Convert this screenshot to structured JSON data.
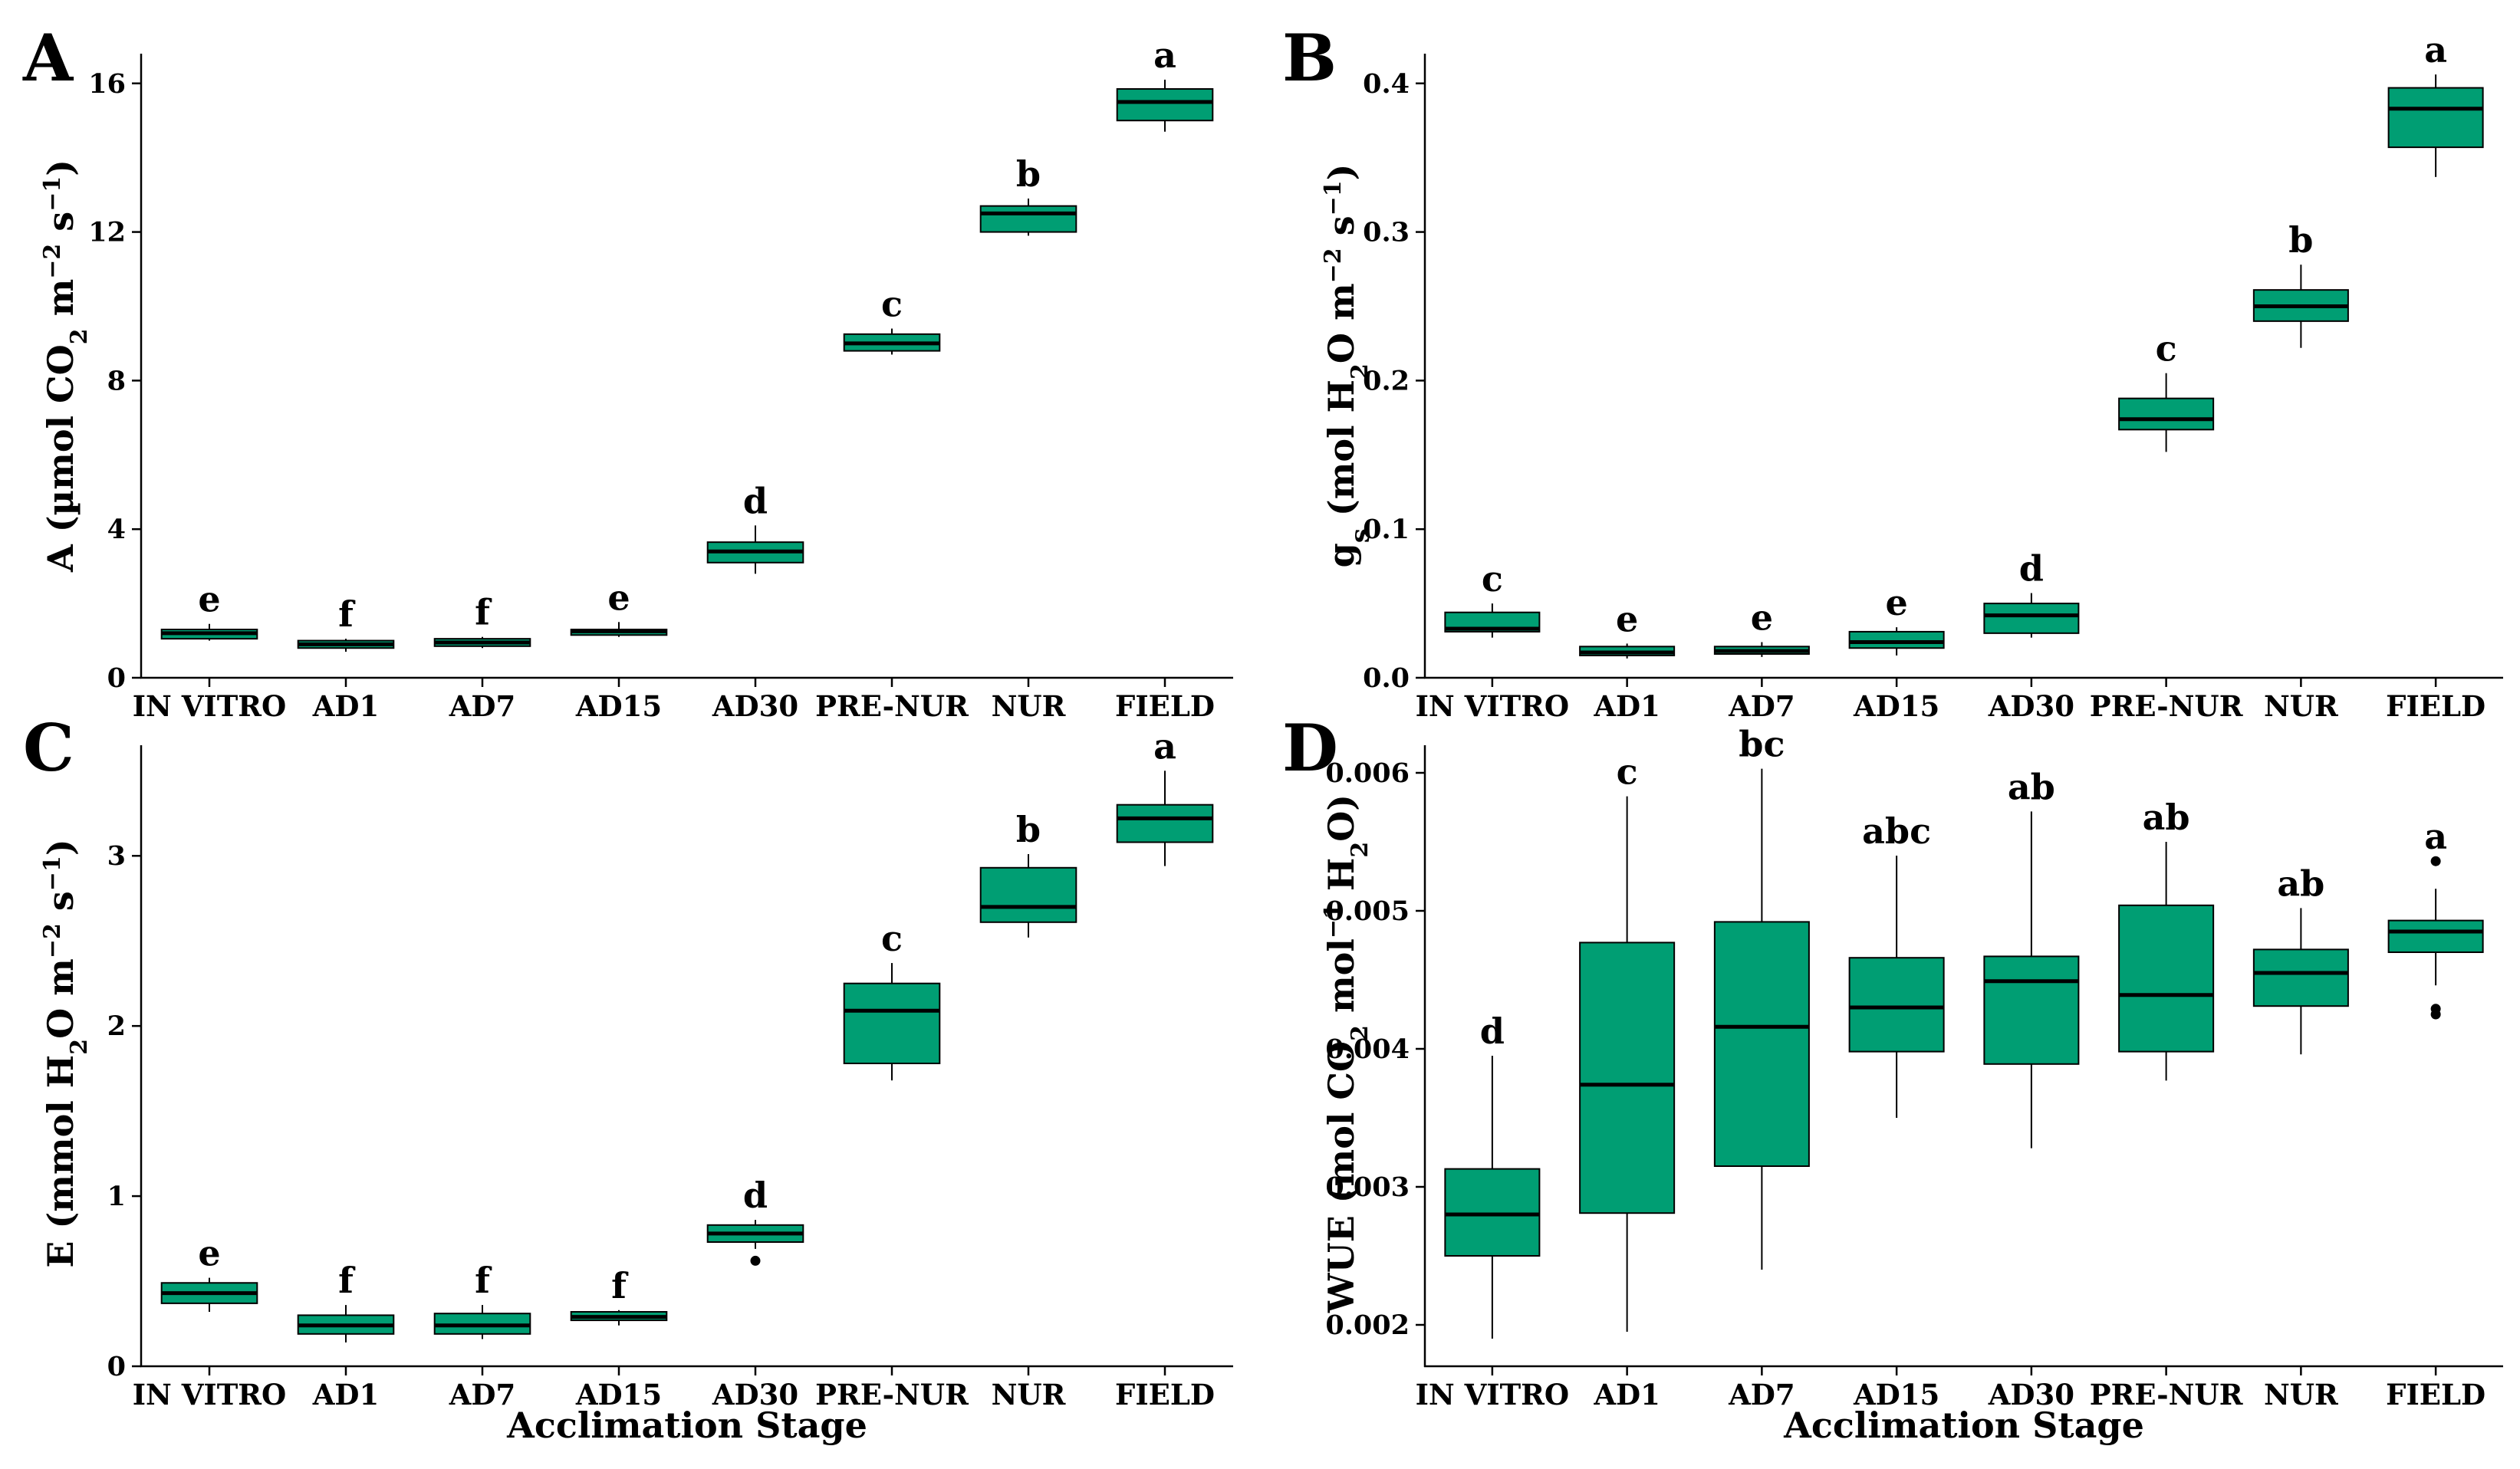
{
  "figure": {
    "box_color": "#009e73",
    "x_axis_title": "Acclimation Stage",
    "categories": [
      "IN VITRO",
      "AD1",
      "AD7",
      "AD15",
      "AD30",
      "PRE-NUR",
      "NUR",
      "FIELD"
    ]
  },
  "chart_data": [
    {
      "type": "box",
      "panel": "A",
      "ylabel_main": "A",
      "ylabel_unit": "(µmol CO2 m−2 s−1)",
      "xlabel": "",
      "ylim": [
        0,
        16.8
      ],
      "yticks": [
        0,
        4,
        8,
        12,
        16
      ],
      "categories": [
        "IN VITRO",
        "AD1",
        "AD7",
        "AD15",
        "AD30",
        "PRE-NUR",
        "NUR",
        "FIELD"
      ],
      "boxes": [
        {
          "min": 1.0,
          "q1": 1.05,
          "median": 1.2,
          "q3": 1.3,
          "max": 1.45,
          "outliers": []
        },
        {
          "min": 0.7,
          "q1": 0.8,
          "median": 0.9,
          "q3": 1.0,
          "max": 1.05,
          "outliers": []
        },
        {
          "min": 0.8,
          "q1": 0.85,
          "median": 0.95,
          "q3": 1.05,
          "max": 1.1,
          "outliers": []
        },
        {
          "min": 1.1,
          "q1": 1.15,
          "median": 1.25,
          "q3": 1.3,
          "max": 1.5,
          "outliers": []
        },
        {
          "min": 2.8,
          "q1": 3.1,
          "median": 3.4,
          "q3": 3.65,
          "max": 4.1,
          "outliers": []
        },
        {
          "min": 8.7,
          "q1": 8.8,
          "median": 9.0,
          "q3": 9.25,
          "max": 9.4,
          "outliers": []
        },
        {
          "min": 11.9,
          "q1": 12.0,
          "median": 12.5,
          "q3": 12.7,
          "max": 12.9,
          "outliers": []
        },
        {
          "min": 14.7,
          "q1": 15.0,
          "median": 15.5,
          "q3": 15.85,
          "max": 16.1,
          "outliers": []
        }
      ],
      "letters": [
        "e",
        "f",
        "f",
        "e",
        "d",
        "c",
        "b",
        "a"
      ]
    },
    {
      "type": "box",
      "panel": "B",
      "ylabel_main": "g",
      "ylabel_sub": "s",
      "ylabel_unit": "(mol H2O m−2 s−1)",
      "xlabel": "",
      "ylim": [
        0,
        0.42
      ],
      "yticks": [
        0.0,
        0.1,
        0.2,
        0.3,
        0.4
      ],
      "ytick_labels": [
        "0.0",
        "0.1",
        "0.2",
        "0.3",
        "0.4"
      ],
      "categories": [
        "IN VITRO",
        "AD1",
        "AD7",
        "AD15",
        "AD30",
        "PRE-NUR",
        "NUR",
        "FIELD"
      ],
      "boxes": [
        {
          "min": 0.027,
          "q1": 0.031,
          "median": 0.033,
          "q3": 0.044,
          "max": 0.05,
          "outliers": []
        },
        {
          "min": 0.013,
          "q1": 0.015,
          "median": 0.017,
          "q3": 0.021,
          "max": 0.023,
          "outliers": []
        },
        {
          "min": 0.014,
          "q1": 0.016,
          "median": 0.018,
          "q3": 0.021,
          "max": 0.024,
          "outliers": []
        },
        {
          "min": 0.015,
          "q1": 0.02,
          "median": 0.024,
          "q3": 0.031,
          "max": 0.034,
          "outliers": []
        },
        {
          "min": 0.027,
          "q1": 0.03,
          "median": 0.042,
          "q3": 0.05,
          "max": 0.057,
          "outliers": []
        },
        {
          "min": 0.152,
          "q1": 0.167,
          "median": 0.174,
          "q3": 0.188,
          "max": 0.205,
          "outliers": []
        },
        {
          "min": 0.222,
          "q1": 0.24,
          "median": 0.25,
          "q3": 0.261,
          "max": 0.278,
          "outliers": []
        },
        {
          "min": 0.337,
          "q1": 0.357,
          "median": 0.383,
          "q3": 0.397,
          "max": 0.406,
          "outliers": []
        }
      ],
      "letters": [
        "c",
        "e",
        "e",
        "e",
        "d",
        "c",
        "b",
        "a"
      ]
    },
    {
      "type": "box",
      "panel": "C",
      "ylabel_main": "E",
      "ylabel_unit": "(mmol H2O m−2 s−1)",
      "xlabel": "Acclimation Stage",
      "ylim": [
        0,
        3.65
      ],
      "yticks": [
        0,
        1,
        2,
        3
      ],
      "categories": [
        "IN VITRO",
        "AD1",
        "AD7",
        "AD15",
        "AD30",
        "PRE-NUR",
        "NUR",
        "FIELD"
      ],
      "boxes": [
        {
          "min": 0.32,
          "q1": 0.37,
          "median": 0.43,
          "q3": 0.49,
          "max": 0.52,
          "outliers": []
        },
        {
          "min": 0.14,
          "q1": 0.19,
          "median": 0.24,
          "q3": 0.3,
          "max": 0.36,
          "outliers": []
        },
        {
          "min": 0.16,
          "q1": 0.19,
          "median": 0.24,
          "q3": 0.31,
          "max": 0.36,
          "outliers": []
        },
        {
          "min": 0.24,
          "q1": 0.27,
          "median": 0.29,
          "q3": 0.32,
          "max": 0.33,
          "outliers": []
        },
        {
          "min": 0.69,
          "q1": 0.73,
          "median": 0.78,
          "q3": 0.83,
          "max": 0.86,
          "outliers": [
            0.62
          ]
        },
        {
          "min": 1.68,
          "q1": 1.78,
          "median": 2.09,
          "q3": 2.25,
          "max": 2.37,
          "outliers": []
        },
        {
          "min": 2.52,
          "q1": 2.61,
          "median": 2.7,
          "q3": 2.93,
          "max": 3.01,
          "outliers": []
        },
        {
          "min": 2.94,
          "q1": 3.08,
          "median": 3.22,
          "q3": 3.3,
          "max": 3.5,
          "outliers": []
        }
      ],
      "letters": [
        "e",
        "f",
        "f",
        "f",
        "d",
        "c",
        "b",
        "a"
      ]
    },
    {
      "type": "box",
      "panel": "D",
      "ylabel_main": "WUE",
      "ylabel_unit": "(mol CO2 mol−1 H2O)",
      "xlabel": "Acclimation Stage",
      "ylim": [
        0.0017,
        0.0062
      ],
      "yticks": [
        0.002,
        0.003,
        0.004,
        0.005,
        0.006
      ],
      "ytick_labels": [
        "0.002",
        "0.003",
        "0.004",
        "0.005",
        "0.006"
      ],
      "categories": [
        "IN VITRO",
        "AD1",
        "AD7",
        "AD15",
        "AD30",
        "PRE-NUR",
        "NUR",
        "FIELD"
      ],
      "boxes": [
        {
          "min": 0.0019,
          "q1": 0.0025,
          "median": 0.0028,
          "q3": 0.00313,
          "max": 0.00395,
          "outliers": []
        },
        {
          "min": 0.00195,
          "q1": 0.00281,
          "median": 0.00374,
          "q3": 0.00477,
          "max": 0.00583,
          "outliers": []
        },
        {
          "min": 0.0024,
          "q1": 0.00315,
          "median": 0.00416,
          "q3": 0.00492,
          "max": 0.00603,
          "outliers": []
        },
        {
          "min": 0.0035,
          "q1": 0.00398,
          "median": 0.0043,
          "q3": 0.00466,
          "max": 0.0054,
          "outliers": []
        },
        {
          "min": 0.00328,
          "q1": 0.00389,
          "median": 0.00449,
          "q3": 0.00467,
          "max": 0.00572,
          "outliers": []
        },
        {
          "min": 0.00377,
          "q1": 0.00398,
          "median": 0.00439,
          "q3": 0.00504,
          "max": 0.0055,
          "outliers": []
        },
        {
          "min": 0.00396,
          "q1": 0.00431,
          "median": 0.00455,
          "q3": 0.00472,
          "max": 0.00502,
          "outliers": []
        },
        {
          "min": 0.00446,
          "q1": 0.0047,
          "median": 0.00485,
          "q3": 0.00493,
          "max": 0.00516,
          "outliers": [
            0.00536,
            0.00429,
            0.00425
          ]
        }
      ],
      "letters": [
        "d",
        "c",
        "bc",
        "abc",
        "ab",
        "ab",
        "ab",
        "a"
      ]
    }
  ]
}
